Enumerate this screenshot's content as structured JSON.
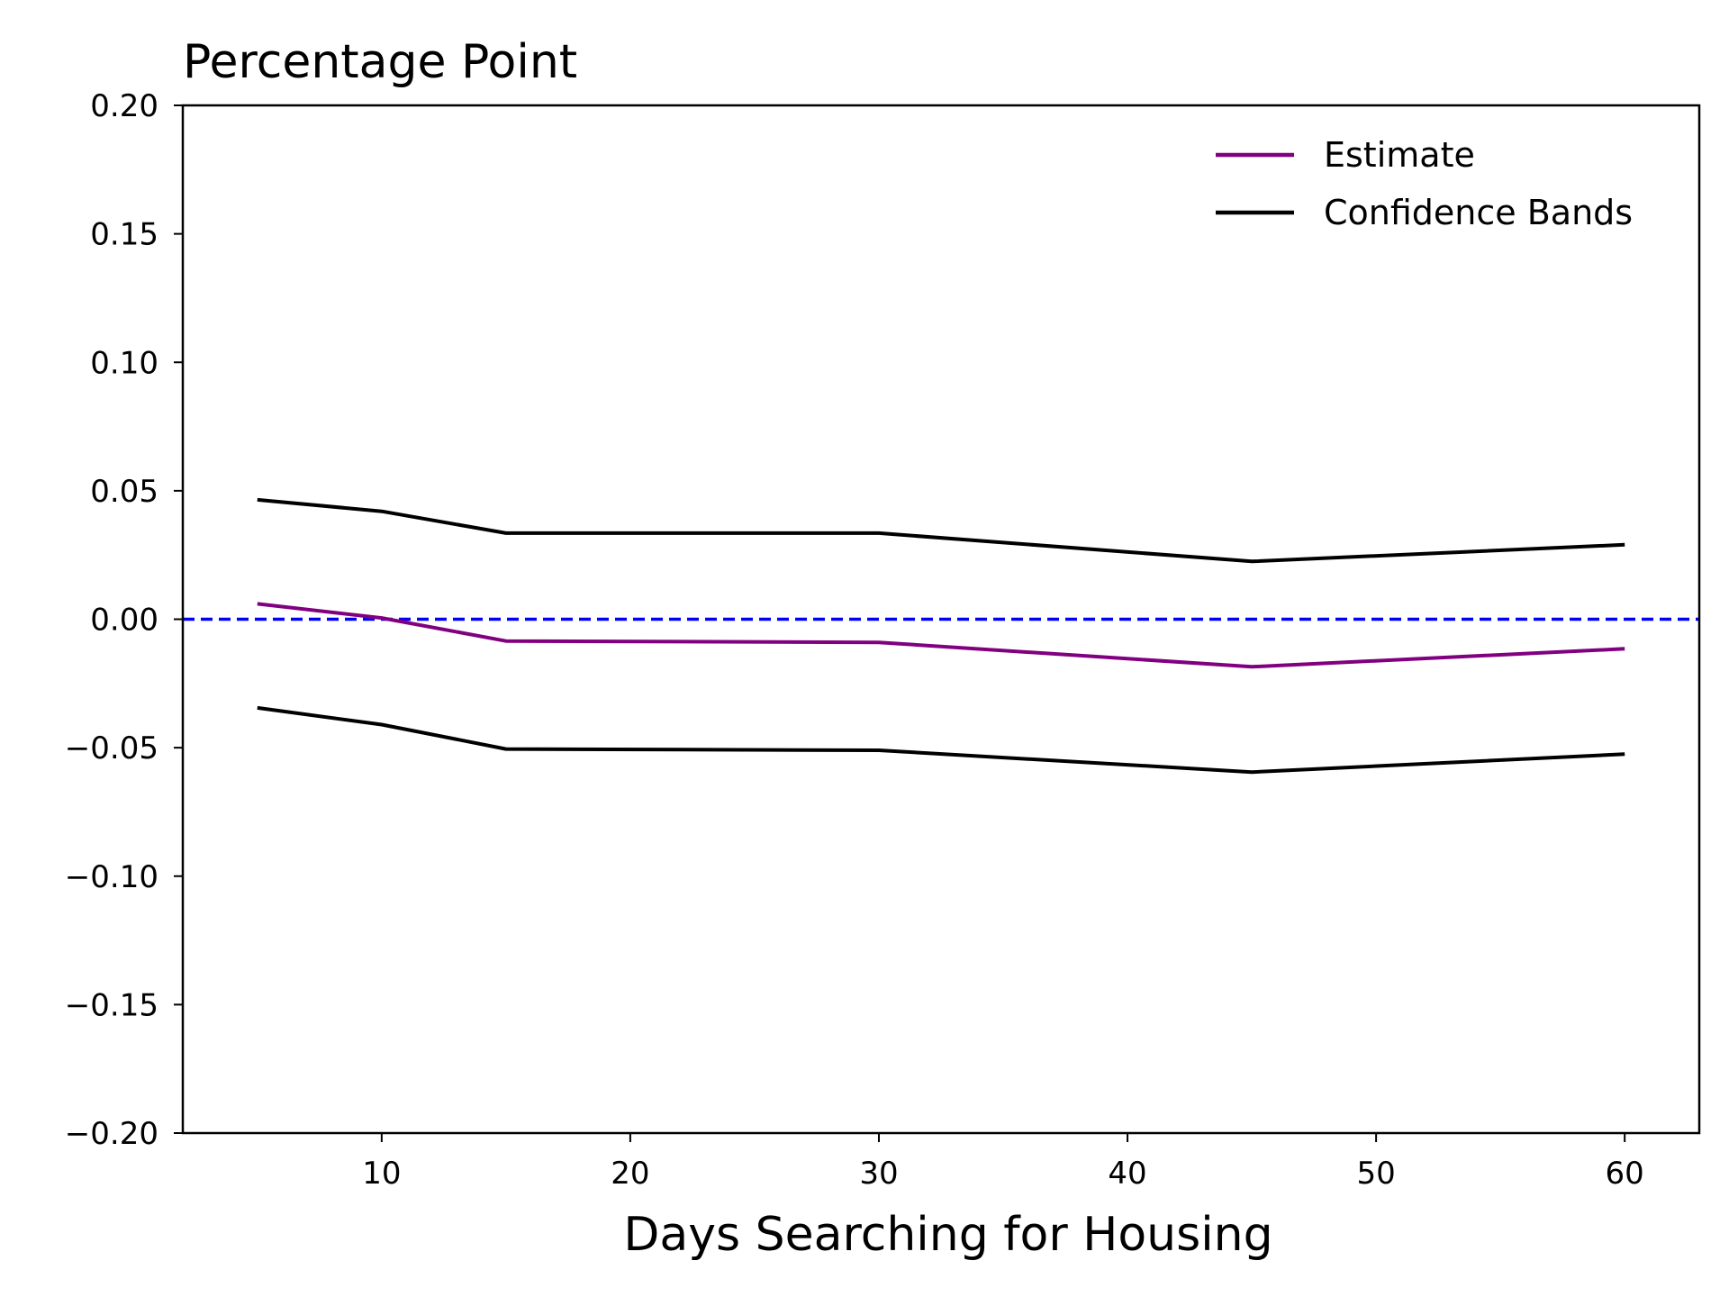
{
  "chart_data": {
    "type": "line",
    "title": "",
    "ylabel": "Percentage Point",
    "xlabel": "Days Searching for Housing",
    "xlim": [
      2,
      63
    ],
    "ylim": [
      -0.2,
      0.2
    ],
    "x_ticks": [
      10,
      20,
      30,
      40,
      50,
      60
    ],
    "x_tick_labels": [
      "10",
      "20",
      "30",
      "40",
      "50",
      "60"
    ],
    "y_ticks": [
      -0.2,
      -0.15,
      -0.1,
      -0.05,
      0.0,
      0.05,
      0.1,
      0.15,
      0.2
    ],
    "y_tick_labels": [
      "−0.20",
      "−0.15",
      "−0.10",
      "−0.05",
      "0.00",
      "0.05",
      "0.10",
      "0.15",
      "0.20"
    ],
    "grid": false,
    "legend_position": "top-right",
    "legend": [
      {
        "label": "Estimate",
        "color": "#800080"
      },
      {
        "label": "Confidence Bands",
        "color": "#000000"
      }
    ],
    "x": [
      5,
      10,
      15,
      30,
      45,
      60
    ],
    "series": [
      {
        "name": "Estimate",
        "color": "#800080",
        "values": [
          0.006,
          0.0005,
          -0.0085,
          -0.009,
          -0.0185,
          -0.0115
        ]
      },
      {
        "name": "Confidence Bands",
        "color": "#000000",
        "values": [
          0.0465,
          0.042,
          0.0335,
          0.0335,
          0.0225,
          0.029
        ]
      },
      {
        "name": "",
        "color": "#000000",
        "values": [
          -0.0345,
          -0.041,
          -0.0505,
          -0.051,
          -0.0595,
          -0.0525
        ]
      }
    ],
    "reference_line": {
      "y": 0.0,
      "color": "#0000ff",
      "style": "dashed"
    }
  }
}
